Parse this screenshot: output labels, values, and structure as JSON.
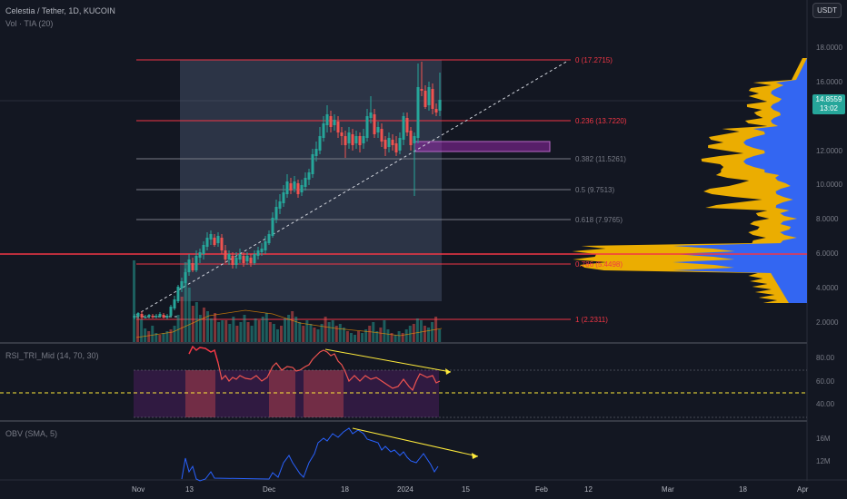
{
  "header": {
    "symbol_title": "Celestia / Tether, 1D, KUCOIN",
    "volume_label": "Vol · TIA (20)"
  },
  "currency_button": "USDT",
  "price_axis": [
    "18.0000",
    "16.0000",
    "12.0000",
    "10.0000",
    "8.0000",
    "6.0000",
    "4.0000",
    "2.0000"
  ],
  "last_price": {
    "value": "14.8559",
    "countdown": "13:02",
    "color": "#26a69a"
  },
  "fib_levels": [
    {
      "label": "0 (17.2715)",
      "color": "#f23645"
    },
    {
      "label": "0.236 (13.7220)",
      "color": "#f23645"
    },
    {
      "label": "0.382 (11.5261)",
      "color": "#787b86"
    },
    {
      "label": "0.5 (9.7513)",
      "color": "#787b86"
    },
    {
      "label": "0.618 (7.9765)",
      "color": "#787b86"
    },
    {
      "label": "0.786 (5.4498)",
      "color": "#f23645"
    },
    {
      "label": "1 (2.2311)",
      "color": "#f23645"
    }
  ],
  "rsi": {
    "label": "RSI_TRI_Mid (14, 70, 30)",
    "axis": [
      "80.00",
      "60.00",
      "40.00"
    ]
  },
  "obv": {
    "label": "OBV (SMA, 5)",
    "axis": [
      "16M",
      "12M"
    ]
  },
  "time_axis": [
    "Nov",
    "13",
    "Dec",
    "18",
    "2024",
    "15",
    "Feb",
    "12",
    "Mar",
    "18",
    "Apr"
  ],
  "colors": {
    "up": "#26a69a",
    "down": "#ef5350",
    "background": "#131722",
    "rsi_line": "#f23645",
    "obv_line": "#2962ff",
    "divergence": "#ffeb3b",
    "profile_blue": "#2962ff",
    "profile_orange": "#f7b500"
  }
}
